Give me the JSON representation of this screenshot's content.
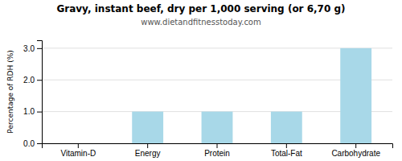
{
  "chart_data": {
    "type": "bar",
    "title": "Gravy, instant beef, dry per 1,000 serving (or 6,70 g)",
    "subtitle": "www.dietandfitnesstoday.com",
    "ylabel": "Percentage of RDH (%)",
    "categories": [
      "Vitamin-D",
      "Energy",
      "Protein",
      "Total-Fat",
      "Carbohydrate"
    ],
    "values": [
      0.0,
      1.0,
      1.0,
      1.0,
      3.0
    ],
    "color": "#a8d8e8",
    "ylim": [
      0,
      3.25
    ],
    "yticks": [
      {
        "value": 0.0,
        "label": "0.0"
      },
      {
        "value": 1.0,
        "label": "1.0"
      },
      {
        "value": 2.0,
        "label": "2.0"
      },
      {
        "value": 3.0,
        "label": "3.0"
      }
    ],
    "grid": true
  }
}
